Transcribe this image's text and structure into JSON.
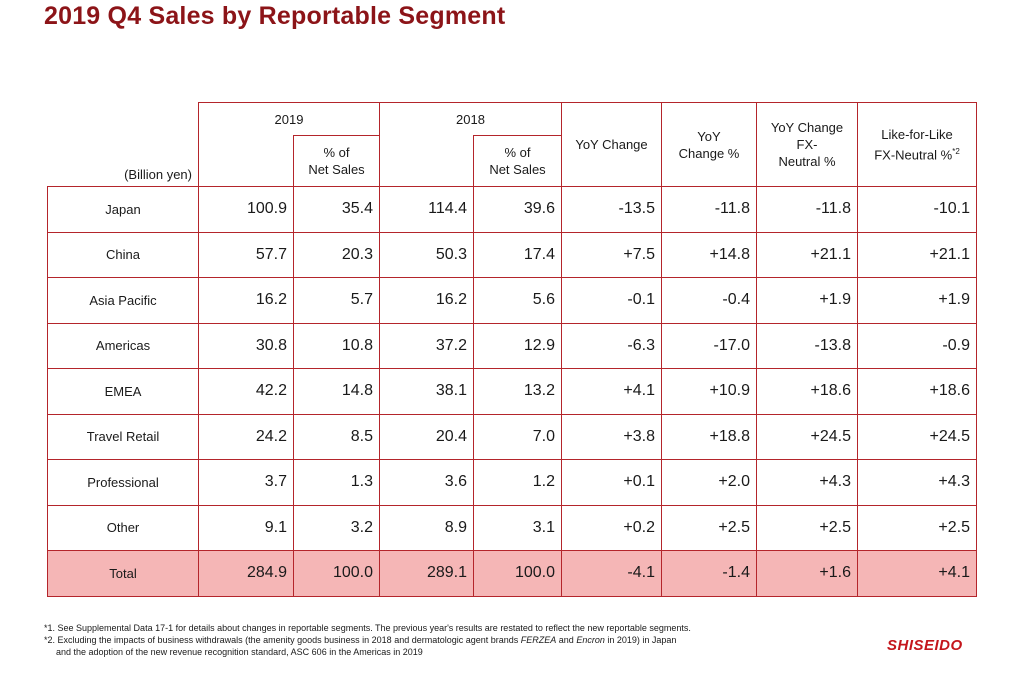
{
  "title": "2019 Q4 Sales by Reportable Segment",
  "table": {
    "unit_label": "(Billion yen)",
    "year_2019": "2019",
    "year_2018": "2018",
    "pct_of_label_a": "% of",
    "pct_of_label_b": "Net Sales",
    "yoy_change": "YoY Change",
    "yoy_change_pct_a": "YoY",
    "yoy_change_pct_b": "Change %",
    "fx_neutral_a": "YoY Change",
    "fx_neutral_b": "FX-",
    "fx_neutral_c": "Neutral %",
    "lfl_a": "Like-for-Like",
    "lfl_b": "FX-Neutral %",
    "lfl_sup": "*2",
    "rows": [
      {
        "label": "Japan",
        "v2019": "100.9",
        "p2019": "35.4",
        "v2018": "114.4",
        "p2018": "39.6",
        "yoy": "-13.5",
        "yoy_pct": "-11.8",
        "fx": "-11.8",
        "lfl": "-10.1"
      },
      {
        "label": "China",
        "v2019": "57.7",
        "p2019": "20.3",
        "v2018": "50.3",
        "p2018": "17.4",
        "yoy": "+7.5",
        "yoy_pct": "+14.8",
        "fx": "+21.1",
        "lfl": "+21.1"
      },
      {
        "label": "Asia Pacific",
        "v2019": "16.2",
        "p2019": "5.7",
        "v2018": "16.2",
        "p2018": "5.6",
        "yoy": "-0.1",
        "yoy_pct": "-0.4",
        "fx": "+1.9",
        "lfl": "+1.9"
      },
      {
        "label": "Americas",
        "v2019": "30.8",
        "p2019": "10.8",
        "v2018": "37.2",
        "p2018": "12.9",
        "yoy": "-6.3",
        "yoy_pct": "-17.0",
        "fx": "-13.8",
        "lfl": "-0.9"
      },
      {
        "label": "EMEA",
        "v2019": "42.2",
        "p2019": "14.8",
        "v2018": "38.1",
        "p2018": "13.2",
        "yoy": "+4.1",
        "yoy_pct": "+10.9",
        "fx": "+18.6",
        "lfl": "+18.6"
      },
      {
        "label": "Travel Retail",
        "v2019": "24.2",
        "p2019": "8.5",
        "v2018": "20.4",
        "p2018": "7.0",
        "yoy": "+3.8",
        "yoy_pct": "+18.8",
        "fx": "+24.5",
        "lfl": "+24.5"
      },
      {
        "label": "Professional",
        "v2019": "3.7",
        "p2019": "1.3",
        "v2018": "3.6",
        "p2018": "1.2",
        "yoy": "+0.1",
        "yoy_pct": "+2.0",
        "fx": "+4.3",
        "lfl": "+4.3"
      },
      {
        "label": "Other",
        "v2019": "9.1",
        "p2019": "3.2",
        "v2018": "8.9",
        "p2018": "3.1",
        "yoy": "+0.2",
        "yoy_pct": "+2.5",
        "fx": "+2.5",
        "lfl": "+2.5"
      },
      {
        "label": "Total",
        "v2019": "284.9",
        "p2019": "100.0",
        "v2018": "289.1",
        "p2018": "100.0",
        "yoy": "-4.1",
        "yoy_pct": "-1.4",
        "fx": "+1.6",
        "lfl": "+4.1"
      }
    ]
  },
  "notes": {
    "note1": "*1. See Supplemental Data 17-1 for details about changes in reportable segments. The previous year's results are restated to reflect the new reportable segments.",
    "note2_pre": "*2. Excluding the impacts of business withdrawals (the amenity goods business in 2018 and dermatologic agent brands ",
    "note2_brand1": "FERZEA",
    "note2_and": " and ",
    "note2_brand2": "Encron",
    "note2_post": " in 2019) in Japan",
    "note2_line2": "and the adoption of the new revenue recognition standard, ASC 606 in the Americas in 2019"
  },
  "logo": "SHISEIDO",
  "colors": {
    "title": "#8c1418",
    "border": "#b4252b",
    "total_fill": "#f5b6b6",
    "logo": "#c4161c"
  }
}
